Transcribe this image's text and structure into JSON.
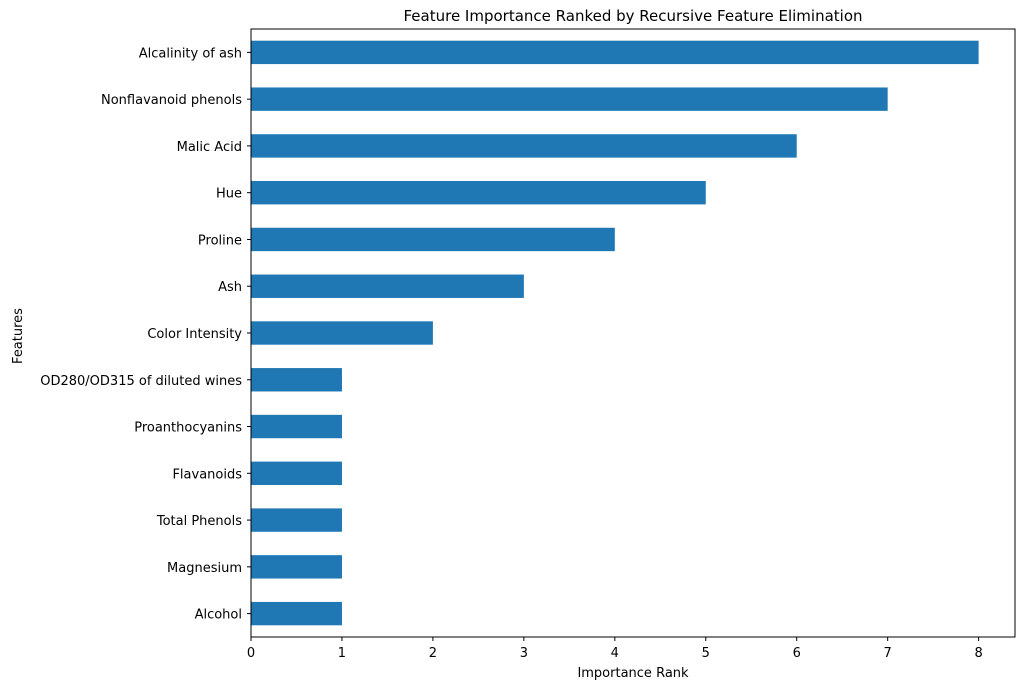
{
  "chart_data": {
    "type": "bar",
    "orientation": "horizontal",
    "title": "Feature Importance Ranked by Recursive Feature Elimination",
    "xlabel": "Importance Rank",
    "ylabel": "Features",
    "xlim": [
      0,
      8.4
    ],
    "xticks": [
      0,
      1,
      2,
      3,
      4,
      5,
      6,
      7,
      8
    ],
    "grid": false,
    "bar_color": "#1f77b4",
    "categories": [
      "Alcohol",
      "Magnesium",
      "Total Phenols",
      "Flavanoids",
      "Proanthocyanins",
      "OD280/OD315 of diluted wines",
      "Color Intensity",
      "Ash",
      "Proline",
      "Hue",
      "Malic Acid",
      "Nonflavanoid phenols",
      "Alcalinity of ash"
    ],
    "values": [
      1,
      1,
      1,
      1,
      1,
      1,
      2,
      3,
      4,
      5,
      6,
      7,
      8
    ]
  }
}
